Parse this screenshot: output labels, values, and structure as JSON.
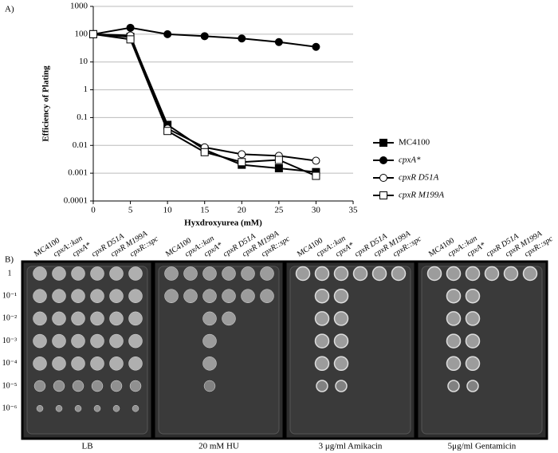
{
  "chart_data": {
    "type": "line",
    "panel_label": "A)",
    "xlabel": "Hyxdroxyurea (mM)",
    "ylabel": "Efficiency of Plating",
    "x": [
      0,
      5,
      10,
      15,
      20,
      25,
      30
    ],
    "xlim": [
      0,
      35
    ],
    "xticks": [
      0,
      5,
      10,
      15,
      20,
      25,
      30,
      35
    ],
    "ylim": [
      0.0001,
      1000
    ],
    "yticks": [
      0.0001,
      0.001,
      0.01,
      0.1,
      1,
      10,
      100,
      1000
    ],
    "yscale": "log",
    "grid": true,
    "legend": "right",
    "series": [
      {
        "name": "MC4100",
        "color": "#000000",
        "marker": "square",
        "filled": true,
        "italic": false,
        "values": [
          100,
          80,
          0.055,
          0.007,
          0.002,
          0.0015,
          0.0011
        ]
      },
      {
        "name": "cpxA*",
        "color": "#000000",
        "marker": "circle",
        "filled": true,
        "italic": true,
        "values": [
          100,
          170,
          100,
          85,
          70,
          52,
          35
        ]
      },
      {
        "name": "cpxR D51A",
        "color": "#000000",
        "marker": "circle",
        "filled": false,
        "italic": true,
        "values": [
          100,
          90,
          0.04,
          0.0085,
          0.0048,
          0.0042,
          0.0028
        ]
      },
      {
        "name": "cpxR M199A",
        "color": "#000000",
        "marker": "square",
        "filled": false,
        "italic": true,
        "values": [
          100,
          65,
          0.033,
          0.0057,
          0.0025,
          0.003,
          0.0008
        ]
      }
    ]
  },
  "plates": {
    "panel_label": "B)",
    "strains": [
      "MC4100",
      "cpxA::kan",
      "cpxA*",
      "cpxR D51A",
      "cpxR M199A",
      "cpxR::spc"
    ],
    "dilutions": [
      "1",
      "10⁻¹",
      "10⁻²",
      "10⁻³",
      "10⁻⁴",
      "10⁻⁵",
      "10⁻⁶"
    ],
    "conditions": [
      "LB",
      "20 mM HU",
      "3 μg/ml Amikacin",
      "5μg/ml Gentamicin"
    ]
  }
}
